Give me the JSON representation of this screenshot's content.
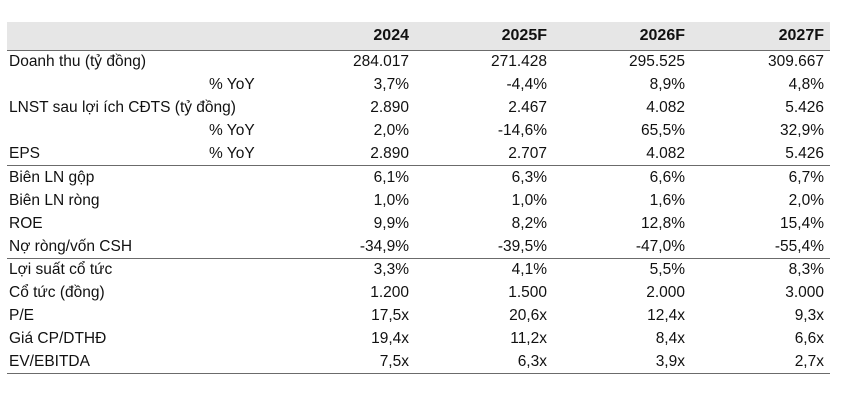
{
  "table": {
    "columns": [
      "2024",
      "2025F",
      "2026F",
      "2027F"
    ],
    "rows": [
      {
        "label": "Doanh thu (tỷ đồng)",
        "sub": "",
        "values": [
          "284.017",
          "271.428",
          "295.525",
          "309.667"
        ]
      },
      {
        "label": "",
        "sub": "% YoY",
        "values": [
          "3,7%",
          "-4,4%",
          "8,9%",
          "4,8%"
        ]
      },
      {
        "label": "LNST sau lợi ích CĐTS (tỷ đồng)",
        "sub": "",
        "values": [
          "2.890",
          "2.467",
          "4.082",
          "5.426"
        ]
      },
      {
        "label": "",
        "sub": "% YoY",
        "values": [
          "2,0%",
          "-14,6%",
          "65,5%",
          "32,9%"
        ]
      },
      {
        "label": "EPS",
        "sub": "% YoY",
        "values": [
          "2.890",
          "2.707",
          "4.082",
          "5.426"
        ]
      },
      {
        "label": "Biên LN gộp",
        "sub": "",
        "values": [
          "6,1%",
          "6,3%",
          "6,6%",
          "6,7%"
        ]
      },
      {
        "label": "Biên LN ròng",
        "sub": "",
        "values": [
          "1,0%",
          "1,0%",
          "1,6%",
          "2,0%"
        ]
      },
      {
        "label": "ROE",
        "sub": "",
        "values": [
          "9,9%",
          "8,2%",
          "12,8%",
          "15,4%"
        ]
      },
      {
        "label": "Nợ ròng/vốn CSH",
        "sub": "",
        "values": [
          "-34,9%",
          "-39,5%",
          "-47,0%",
          "-55,4%"
        ]
      },
      {
        "label": "Lợi suất cổ tức",
        "sub": "",
        "values": [
          "3,3%",
          "4,1%",
          "5,5%",
          "8,3%"
        ]
      },
      {
        "label": "Cổ tức (đồng)",
        "sub": "",
        "values": [
          "1.200",
          "1.500",
          "2.000",
          "3.000"
        ]
      },
      {
        "label": "P/E",
        "sub": "",
        "values": [
          "17,5x",
          "20,6x",
          "12,4x",
          "9,3x"
        ]
      },
      {
        "label": "Giá CP/DTHĐ",
        "sub": "",
        "values": [
          "19,4x",
          "11,2x",
          "8,4x",
          "6,6x"
        ]
      },
      {
        "label": "EV/EBITDA",
        "sub": "",
        "values": [
          "7,5x",
          "6,3x",
          "3,9x",
          "2,7x"
        ]
      }
    ]
  }
}
